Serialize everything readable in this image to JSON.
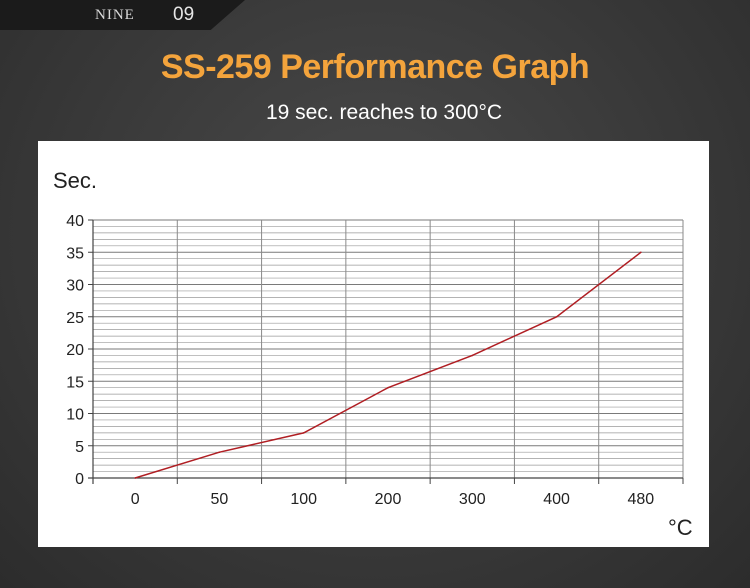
{
  "header": {
    "brand": "NINE",
    "page_number": "09"
  },
  "title": "SS-259 Performance Graph",
  "subtitle": "19 sec. reaches to 300°C",
  "colors": {
    "title": "#f4a43c",
    "line": "#b01e23"
  },
  "chart_data": {
    "type": "line",
    "categories": [
      "0",
      "50",
      "100",
      "200",
      "300",
      "400",
      "480"
    ],
    "series": [
      {
        "values": [
          0,
          4,
          7,
          14,
          19,
          25,
          35
        ]
      }
    ],
    "xlabel": "°C",
    "ylabel": "Sec.",
    "ylim": [
      0,
      40
    ],
    "yticks": [
      "0",
      "5",
      "10",
      "15",
      "20",
      "25",
      "30",
      "35",
      "40"
    ],
    "grid": true,
    "legend": "none"
  }
}
